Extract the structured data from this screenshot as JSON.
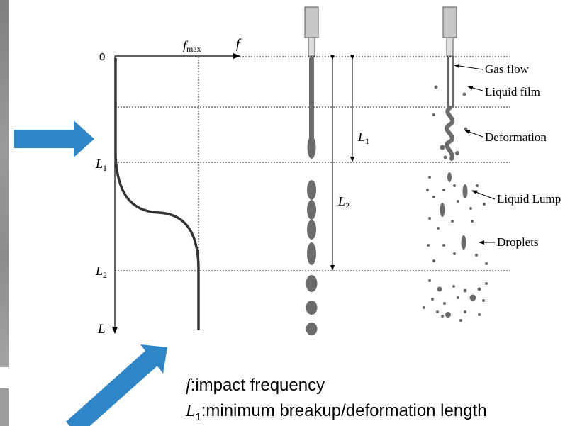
{
  "axis": {
    "origin_label": "0",
    "fmax_symbol": "f",
    "fmax_subscript": "max",
    "f_label": "f",
    "L_label": "L",
    "L1_symbol": "L",
    "L1_subscript": "1",
    "L2_symbol": "L",
    "L2_subscript": "2"
  },
  "jet_dimensions": {
    "L1_symbol": "L",
    "L1_subscript": "1",
    "L2_symbol": "L",
    "L2_subscript": "2"
  },
  "annotations": {
    "gas_flow": "Gas flow",
    "liquid_film": "Liquid film",
    "deformation": "Deformation",
    "liquid_lump": "Liquid Lump",
    "droplets": "Droplets"
  },
  "captions": {
    "f_symbol": "f",
    "f_text": ":impact frequency",
    "L1_symbol": "L",
    "L1_subscript": "1",
    "L1_text": ":minimum breakup/deformation length"
  },
  "colors": {
    "arrow": "#2e86c9",
    "jet": "#6b6b6b",
    "curve": "#333333",
    "nozzle": "#c8c8c8"
  }
}
